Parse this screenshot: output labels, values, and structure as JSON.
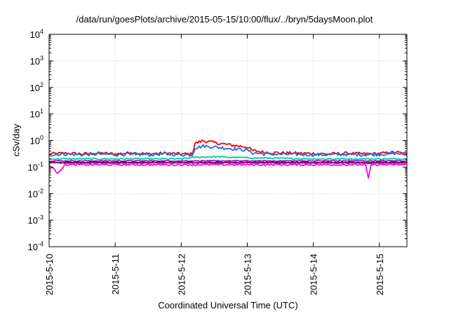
{
  "chart_data": {
    "type": "line",
    "title": "/data/run/goesPlots/archive/2015-05-15/10:00/flux/../bryn/5daysMoon.plot",
    "xlabel": "Coordinated Universal Time (UTC)",
    "ylabel": "cSv/day",
    "x_tick_labels": [
      "2015-5-10",
      "2015-5-11",
      "2015-5-12",
      "2015-5-13",
      "2015-5-14",
      "2015-5-15"
    ],
    "xlim": [
      "2015-05-10 00:00",
      "2015-05-15 10:00"
    ],
    "yscale": "log",
    "ylim": [
      0.0001,
      10000
    ],
    "y_tick_labels": [
      {
        "base": "10",
        "exp": "-4"
      },
      {
        "base": "10",
        "exp": "-3"
      },
      {
        "base": "10",
        "exp": "-2"
      },
      {
        "base": "10",
        "exp": "-1"
      },
      {
        "base": "10",
        "exp": "0"
      },
      {
        "base": "10",
        "exp": "1"
      },
      {
        "base": "10",
        "exp": "2"
      },
      {
        "base": "10",
        "exp": "3"
      },
      {
        "base": "10",
        "exp": "4"
      }
    ],
    "grid": true,
    "series": [
      {
        "color": "#ff0000",
        "points": [
          [
            "2015-05-10 00:00",
            0.3
          ],
          [
            "2015-05-10 06:00",
            0.32
          ],
          [
            "2015-05-10 12:00",
            0.3
          ],
          [
            "2015-05-10 18:00",
            0.32
          ],
          [
            "2015-05-11 00:00",
            0.3
          ],
          [
            "2015-05-11 06:00",
            0.33
          ],
          [
            "2015-05-11 12:00",
            0.3
          ],
          [
            "2015-05-11 18:00",
            0.32
          ],
          [
            "2015-05-12 00:00",
            0.3
          ],
          [
            "2015-05-12 04:00",
            0.3
          ],
          [
            "2015-05-12 05:00",
            0.75
          ],
          [
            "2015-05-12 08:00",
            0.95
          ],
          [
            "2015-05-12 12:00",
            0.8
          ],
          [
            "2015-05-12 18:00",
            0.65
          ],
          [
            "2015-05-13 00:00",
            0.55
          ],
          [
            "2015-05-13 02:00",
            0.4
          ],
          [
            "2015-05-13 06:00",
            0.35
          ],
          [
            "2015-05-13 12:00",
            0.33
          ],
          [
            "2015-05-13 18:00",
            0.32
          ],
          [
            "2015-05-14 00:00",
            0.31
          ],
          [
            "2015-05-14 06:00",
            0.3
          ],
          [
            "2015-05-14 12:00",
            0.32
          ],
          [
            "2015-05-14 18:00",
            0.3
          ],
          [
            "2015-05-15 00:00",
            0.31
          ],
          [
            "2015-05-15 06:00",
            0.35
          ],
          [
            "2015-05-15 10:00",
            0.3
          ]
        ]
      },
      {
        "color": "#1e6ee8",
        "points": [
          [
            "2015-05-10 00:00",
            0.28
          ],
          [
            "2015-05-10 06:00",
            0.3
          ],
          [
            "2015-05-10 12:00",
            0.28
          ],
          [
            "2015-05-10 18:00",
            0.3
          ],
          [
            "2015-05-11 00:00",
            0.28
          ],
          [
            "2015-05-11 06:00",
            0.3
          ],
          [
            "2015-05-11 12:00",
            0.28
          ],
          [
            "2015-05-11 18:00",
            0.3
          ],
          [
            "2015-05-12 00:00",
            0.28
          ],
          [
            "2015-05-12 04:00",
            0.28
          ],
          [
            "2015-05-12 05:00",
            0.5
          ],
          [
            "2015-05-12 08:00",
            0.6
          ],
          [
            "2015-05-12 12:00",
            0.55
          ],
          [
            "2015-05-12 18:00",
            0.48
          ],
          [
            "2015-05-13 00:00",
            0.42
          ],
          [
            "2015-05-13 02:00",
            0.33
          ],
          [
            "2015-05-13 06:00",
            0.3
          ],
          [
            "2015-05-13 12:00",
            0.29
          ],
          [
            "2015-05-13 18:00",
            0.29
          ],
          [
            "2015-05-14 00:00",
            0.28
          ],
          [
            "2015-05-14 06:00",
            0.28
          ],
          [
            "2015-05-14 12:00",
            0.29
          ],
          [
            "2015-05-14 18:00",
            0.28
          ],
          [
            "2015-05-15 00:00",
            0.29
          ],
          [
            "2015-05-15 06:00",
            0.32
          ],
          [
            "2015-05-15 10:00",
            0.28
          ]
        ]
      },
      {
        "color": "#00c8a0",
        "points": [
          [
            "2015-05-10 00:00",
            0.2
          ],
          [
            "2015-05-11 00:00",
            0.2
          ],
          [
            "2015-05-12 00:00",
            0.2
          ],
          [
            "2015-05-12 05:00",
            0.23
          ],
          [
            "2015-05-12 12:00",
            0.24
          ],
          [
            "2015-05-13 00:00",
            0.22
          ],
          [
            "2015-05-14 00:00",
            0.2
          ],
          [
            "2015-05-15 00:00",
            0.2
          ],
          [
            "2015-05-15 10:00",
            0.2
          ]
        ]
      },
      {
        "color": "#8c28c8",
        "points": [
          [
            "2015-05-10 00:00",
            0.17
          ],
          [
            "2015-05-11 00:00",
            0.17
          ],
          [
            "2015-05-12 00:00",
            0.17
          ],
          [
            "2015-05-13 00:00",
            0.17
          ],
          [
            "2015-05-14 00:00",
            0.17
          ],
          [
            "2015-05-15 00:00",
            0.17
          ],
          [
            "2015-05-15 10:00",
            0.17
          ]
        ]
      },
      {
        "color": "#1a1a50",
        "points": [
          [
            "2015-05-10 00:00",
            0.15
          ],
          [
            "2015-05-11 00:00",
            0.15
          ],
          [
            "2015-05-12 00:00",
            0.15
          ],
          [
            "2015-05-13 00:00",
            0.15
          ],
          [
            "2015-05-14 00:00",
            0.15
          ],
          [
            "2015-05-15 00:00",
            0.15
          ],
          [
            "2015-05-15 10:00",
            0.15
          ]
        ]
      },
      {
        "color": "#c81464",
        "points": [
          [
            "2015-05-10 00:00",
            0.14
          ],
          [
            "2015-05-11 00:00",
            0.14
          ],
          [
            "2015-05-12 00:00",
            0.14
          ],
          [
            "2015-05-13 00:00",
            0.14
          ],
          [
            "2015-05-14 00:00",
            0.14
          ],
          [
            "2015-05-15 00:00",
            0.14
          ],
          [
            "2015-05-15 10:00",
            0.14
          ]
        ]
      },
      {
        "color": "#ff00ff",
        "points": [
          [
            "2015-05-10 00:00",
            0.12
          ],
          [
            "2015-05-10 03:00",
            0.06
          ],
          [
            "2015-05-10 06:00",
            0.12
          ],
          [
            "2015-05-11 00:00",
            0.12
          ],
          [
            "2015-05-12 00:00",
            0.12
          ],
          [
            "2015-05-13 00:00",
            0.12
          ],
          [
            "2015-05-14 00:00",
            0.12
          ],
          [
            "2015-05-14 19:00",
            0.12
          ],
          [
            "2015-05-14 20:00",
            0.035
          ],
          [
            "2015-05-14 21:00",
            0.12
          ],
          [
            "2015-05-15 00:00",
            0.12
          ],
          [
            "2015-05-15 10:00",
            0.12
          ]
        ]
      }
    ]
  }
}
